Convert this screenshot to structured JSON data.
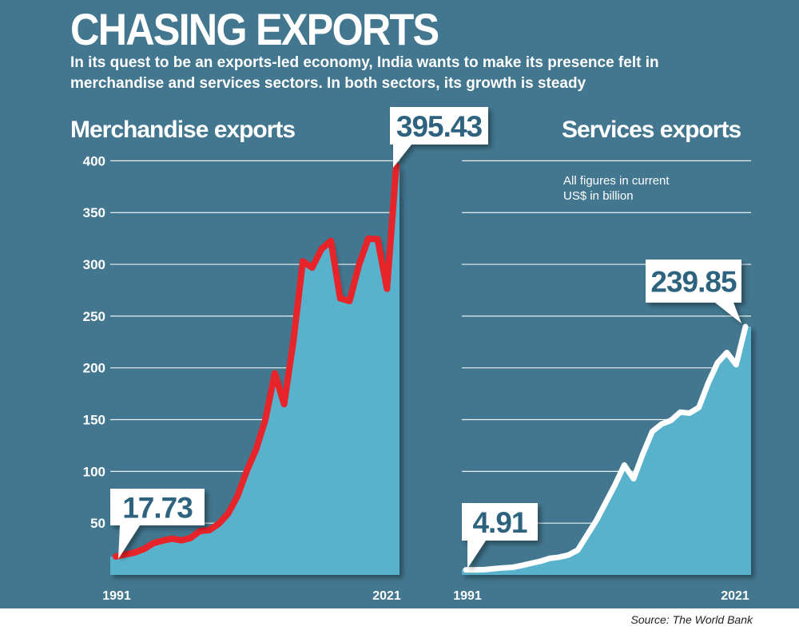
{
  "title": "CHASING EXPORTS",
  "subtitle": "In its quest to be an exports-led economy, India wants to make its presence felt in merchandise and services sectors. In both sectors, its growth is steady",
  "note": "All figures in current\nUS$ in billion",
  "source": "Source: The World Bank",
  "colors": {
    "background": "#42778f",
    "area": "#58b2cc",
    "merchandise_line": "#e8242b",
    "services_line": "#ffffff",
    "text": "#ffffff"
  },
  "chart_data": [
    {
      "type": "area",
      "title": "Merchandise exports",
      "x_tick_labels": [
        "1991",
        "2021"
      ],
      "y_ticks": [
        50,
        100,
        150,
        200,
        250,
        300,
        350,
        400
      ],
      "ylim": [
        0,
        400
      ],
      "x": [
        1991,
        1992,
        1993,
        1994,
        1995,
        1996,
        1997,
        1998,
        1999,
        2000,
        2001,
        2002,
        2003,
        2004,
        2005,
        2006,
        2007,
        2008,
        2009,
        2010,
        2011,
        2012,
        2013,
        2014,
        2015,
        2016,
        2017,
        2018,
        2019,
        2020,
        2021
      ],
      "values": [
        17.73,
        19.6,
        21.6,
        25.0,
        30.6,
        33.1,
        35.0,
        33.4,
        35.7,
        42.4,
        43.3,
        49.3,
        59.1,
        75.9,
        100.4,
        121.2,
        150.2,
        194.8,
        164.9,
        226.4,
        302.9,
        296.8,
        314.8,
        322.7,
        267.1,
        264.5,
        299.2,
        324.8,
        324.3,
        276.4,
        395.43
      ],
      "annotations": [
        {
          "text": "17.73"
        },
        {
          "text": "395.43"
        }
      ],
      "grid": true
    },
    {
      "type": "area",
      "title": "Services exports",
      "x_tick_labels": [
        "1991",
        "2021"
      ],
      "ylim": [
        0,
        400
      ],
      "x": [
        1991,
        1992,
        1993,
        1994,
        1995,
        1996,
        1997,
        1998,
        1999,
        2000,
        2001,
        2002,
        2003,
        2004,
        2005,
        2006,
        2007,
        2008,
        2009,
        2010,
        2011,
        2012,
        2013,
        2014,
        2015,
        2016,
        2017,
        2018,
        2019,
        2020,
        2021
      ],
      "values": [
        4.91,
        4.9,
        5.1,
        6.0,
        6.8,
        7.3,
        9.1,
        11.2,
        13.2,
        16.0,
        17.1,
        19.2,
        23.9,
        38.3,
        52.5,
        69.7,
        86.9,
        106.1,
        92.9,
        117.1,
        138.5,
        145.7,
        149.2,
        157.2,
        156.3,
        161.8,
        185.3,
        204.9,
        214.8,
        203.1,
        239.85
      ],
      "annotations": [
        {
          "text": "4.91"
        },
        {
          "text": "239.85"
        }
      ],
      "grid": true
    }
  ]
}
